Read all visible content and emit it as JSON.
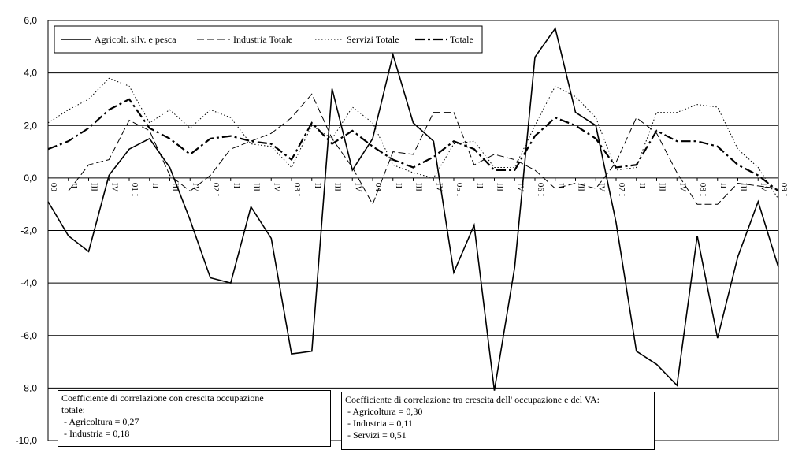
{
  "chart_data": {
    "type": "line",
    "title": "",
    "xlabel": "",
    "ylabel": "",
    "ylim": [
      -10,
      6
    ],
    "yticks": [
      "6,0",
      "4,0",
      "2,0",
      "0,0",
      "-2,0",
      "-4,0",
      "-6,0",
      "-8,0",
      "-10,0"
    ],
    "grid": "horizontal",
    "legend_position": "top-left",
    "categories": [
      "00",
      "II",
      "III",
      "IV",
      "01 I",
      "II",
      "III",
      "IV",
      "02 I",
      "II",
      "III",
      "IV",
      "03 I",
      "II",
      "III",
      "IV",
      "04 I",
      "II",
      "III",
      "IV",
      "05 I",
      "II",
      "III",
      "IV",
      "06 I",
      "II",
      "III",
      "IV",
      "07 I",
      "II",
      "III",
      "IV",
      "08 I",
      "II",
      "III",
      "IV",
      "09 I"
    ],
    "series": [
      {
        "name": "Agricolt. silv. e pesca",
        "style": "solid",
        "color": "#000000",
        "values": [
          -0.9,
          -2.2,
          -2.8,
          0.1,
          1.1,
          1.5,
          0.4,
          -1.6,
          -3.8,
          -4.0,
          -1.1,
          -2.3,
          -6.7,
          -6.6,
          3.4,
          0.3,
          1.5,
          4.7,
          2.1,
          1.4,
          -3.6,
          -1.8,
          -8.1,
          -3.4,
          4.6,
          5.7,
          2.5,
          2.0,
          -1.7,
          -6.6,
          -7.1,
          -7.9,
          -2.2,
          -6.1,
          -3.0,
          -0.9,
          -3.4
        ]
      },
      {
        "name": "Industria Totale",
        "style": "dashed",
        "color": "#000000",
        "values": [
          -0.5,
          -0.5,
          0.5,
          0.7,
          2.2,
          1.8,
          0.1,
          -0.5,
          0.1,
          1.1,
          1.4,
          1.7,
          2.3,
          3.2,
          1.5,
          0.4,
          -1.0,
          1.0,
          0.9,
          2.5,
          2.5,
          0.5,
          0.9,
          0.7,
          0.3,
          -0.4,
          -0.2,
          -0.4,
          0.6,
          2.3,
          1.7,
          0.2,
          -1.0,
          -1.0,
          -0.2,
          -0.3,
          -0.4
        ]
      },
      {
        "name": "Servizi Totale",
        "style": "dotted",
        "color": "#000000",
        "values": [
          2.1,
          2.6,
          3.0,
          3.8,
          3.5,
          2.1,
          2.6,
          1.9,
          2.6,
          2.3,
          1.3,
          1.2,
          0.4,
          2.0,
          1.5,
          2.7,
          2.1,
          0.5,
          0.2,
          0.0,
          1.3,
          1.4,
          0.4,
          0.4,
          2.0,
          3.5,
          3.1,
          2.3,
          0.3,
          0.4,
          2.5,
          2.5,
          2.8,
          2.7,
          1.1,
          0.4,
          -0.8
        ]
      },
      {
        "name": "Totale",
        "style": "dashdot",
        "color": "#000000",
        "values": [
          1.1,
          1.4,
          1.9,
          2.6,
          3.0,
          1.9,
          1.5,
          0.9,
          1.5,
          1.6,
          1.4,
          1.3,
          0.7,
          2.1,
          1.3,
          1.8,
          1.2,
          0.7,
          0.4,
          0.8,
          1.4,
          1.1,
          0.3,
          0.3,
          1.6,
          2.3,
          2.0,
          1.5,
          0.4,
          0.5,
          1.8,
          1.4,
          1.4,
          1.2,
          0.5,
          0.1,
          -0.5
        ]
      }
    ]
  },
  "notes": {
    "left": {
      "line1": "Coefficiente di correlazione con crescita occupazione",
      "line2": "totale:",
      "line3": " - Agricoltura = 0,27",
      "line4": " - Industria = 0,18"
    },
    "right": {
      "line1": "Coefficiente di correlazione tra crescita dell' occupazione e del VA:",
      "line2": " - Agricoltura = 0,30",
      "line3": " - Industria = 0,11",
      "line4": " - Servizi = 0,51"
    }
  }
}
